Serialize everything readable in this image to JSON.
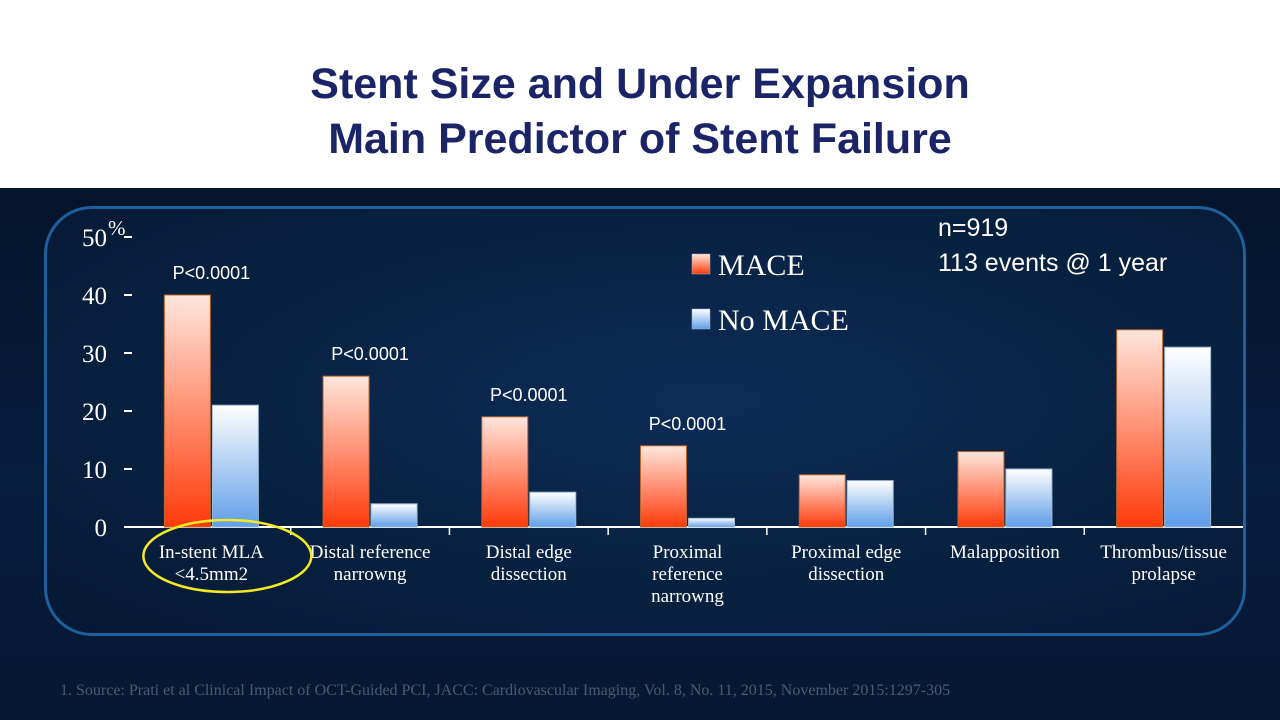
{
  "slide": {
    "title_line1": "Stent Size and Under Expansion",
    "title_line2": "Main Predictor of Stent Failure",
    "source": "1. Source:  Prati et al Clinical Impact of OCT-Guided PCI, JACC: Cardiovascular Imaging, Vol. 8, No. 11, 2015, November 2015:1297-305"
  },
  "annotations": {
    "n_text": "n=919",
    "events_text": "113 events @ 1 year"
  },
  "colors": {
    "mace_top": "#ffe6dc",
    "mace_bottom": "#ff3a0a",
    "nomace_top": "#ffffff",
    "nomace_bottom": "#5f9ee8",
    "highlight_ellipse": "#f2ea22",
    "frame": "#1f5f9c"
  },
  "chart_data": {
    "type": "bar",
    "y_unit": "%",
    "ylim": [
      0,
      50
    ],
    "yticks": [
      0,
      10,
      20,
      30,
      40,
      50
    ],
    "categories": [
      [
        "In-stent MLA",
        "<4.5mm2"
      ],
      [
        "Distal reference",
        "narrowng"
      ],
      [
        "Distal edge",
        "dissection"
      ],
      [
        "Proximal",
        "reference",
        "narrowng"
      ],
      [
        "Proximal edge",
        "dissection"
      ],
      [
        "Malapposition"
      ],
      [
        "Thrombus/tissue",
        "prolapse"
      ]
    ],
    "series": [
      {
        "name": "MACE",
        "values": [
          40,
          26,
          19,
          14,
          9,
          13,
          34
        ]
      },
      {
        "name": "No MACE",
        "values": [
          21,
          4,
          6,
          1.5,
          8,
          10,
          31
        ]
      }
    ],
    "p_values": [
      "P<0.0001",
      "P<0.0001",
      "P<0.0001",
      "P<0.0001",
      "",
      "",
      ""
    ],
    "legend_position": "top-center",
    "highlighted_category_index": 0
  }
}
